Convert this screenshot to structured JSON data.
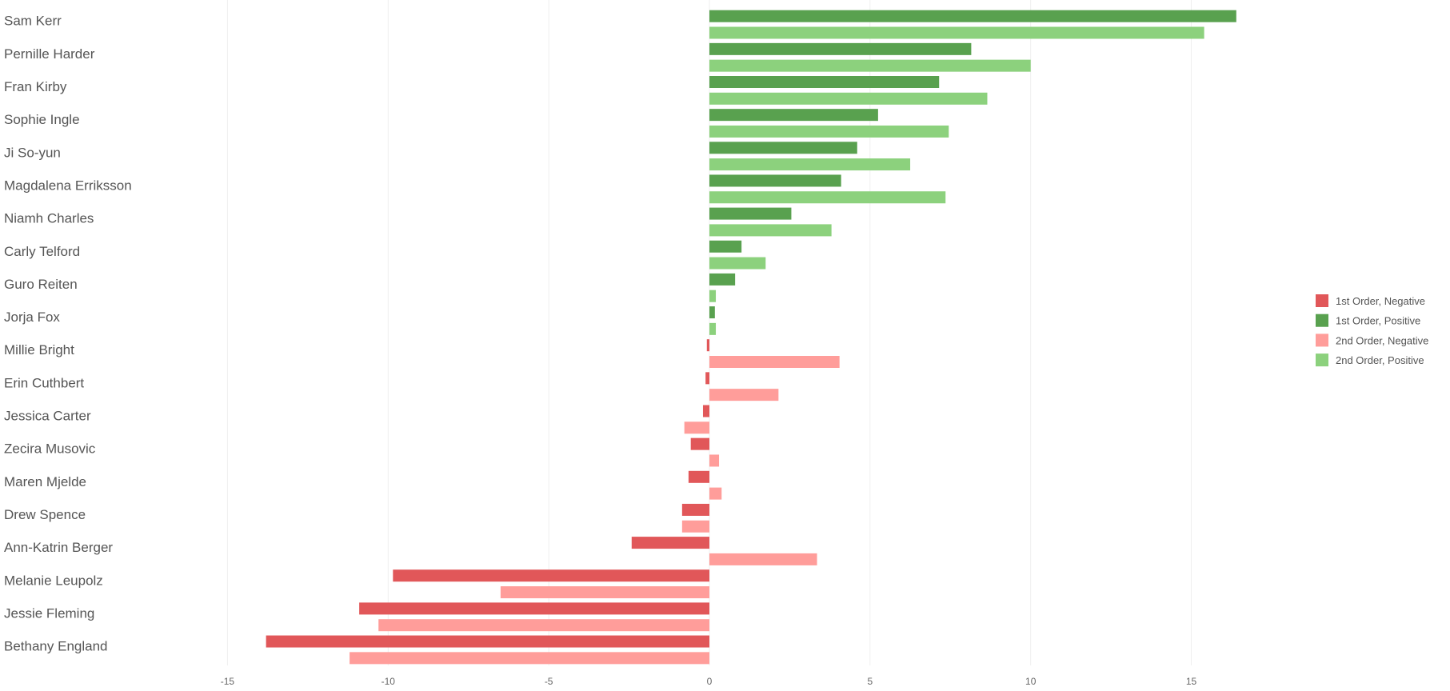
{
  "chart_data": {
    "type": "bar",
    "orientation": "horizontal",
    "title": "",
    "xlabel": "",
    "ylabel": "",
    "xlim": [
      -19,
      23
    ],
    "xticks": [
      -15,
      -10,
      -5,
      0,
      5,
      10,
      15
    ],
    "grid": true,
    "legend_position": "right",
    "legend": [
      {
        "key": "1n",
        "label": "1st Order, Negative",
        "color": "#e15759"
      },
      {
        "key": "1p",
        "label": "1st Order, Positive",
        "color": "#59a14f"
      },
      {
        "key": "2n",
        "label": "2nd Order, Negative",
        "color": "#ff9d9a"
      },
      {
        "key": "2p",
        "label": "2nd Order, Positive",
        "color": "#8cd17d"
      }
    ],
    "categories": [
      "Sam Kerr",
      "Pernille Harder",
      "Fran Kirby",
      "Sophie Ingle",
      "Ji So-yun",
      "Magdalena Erriksson",
      "Niamh Charles",
      "Carly Telford",
      "Guro Reiten",
      "Jorja Fox",
      "Millie Bright",
      "Erin Cuthbert",
      "Jessica Carter",
      "Zecira Musovic",
      "Maren Mjelde",
      "Drew Spence",
      "Ann-Katrin Berger",
      "Melanie Leupolz",
      "Jessie Fleming",
      "Bethany England"
    ],
    "series": [
      {
        "order": "1st",
        "values": [
          16.4,
          8.15,
          7.15,
          5.25,
          4.6,
          4.1,
          2.55,
          1.0,
          0.8,
          0.17,
          -0.08,
          -0.12,
          -0.2,
          -0.58,
          -0.65,
          -0.85,
          -2.42,
          -9.85,
          -10.9,
          -13.8
        ],
        "color_keys": [
          "1p",
          "1p",
          "1p",
          "1p",
          "1p",
          "1p",
          "1p",
          "1p",
          "1p",
          "1p",
          "1n",
          "1n",
          "1n",
          "1n",
          "1n",
          "1n",
          "1n",
          "1n",
          "1n",
          "1n"
        ]
      },
      {
        "order": "2nd",
        "values": [
          15.4,
          10.0,
          8.65,
          7.45,
          6.25,
          7.35,
          3.8,
          1.75,
          0.2,
          0.2,
          4.05,
          2.15,
          -0.78,
          0.3,
          0.38,
          -0.85,
          3.35,
          -6.5,
          -10.3,
          -11.2
        ],
        "color_keys": [
          "2p",
          "2p",
          "2p",
          "2p",
          "2p",
          "2p",
          "2p",
          "2p",
          "2p",
          "2p",
          "2n",
          "2n",
          "2n",
          "2n",
          "2n",
          "2n",
          "2n",
          "2n",
          "2n",
          "2n"
        ]
      }
    ]
  }
}
